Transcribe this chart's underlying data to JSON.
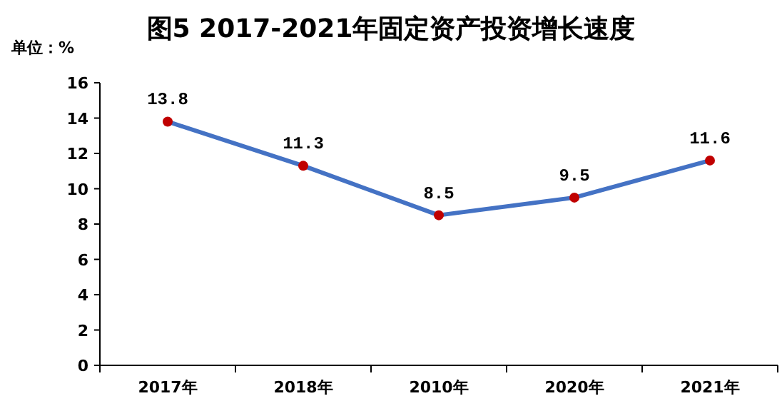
{
  "chart_data": {
    "type": "line",
    "title": "图5  2017-2021年固定资产投资增长速度",
    "ylabel": "单位：%",
    "categories": [
      "2017年",
      "2018年",
      "2010年",
      "2020年",
      "2021年"
    ],
    "series": [
      {
        "color": "#4472c4",
        "colors": [
          "#c00000",
          "#c00000",
          "#c00000",
          "#c00000",
          "#c00000"
        ],
        "values": [
          13.8,
          11.3,
          8.5,
          9.5,
          11.6
        ]
      }
    ],
    "ylim": [
      0,
      16
    ],
    "yticks": [
      0,
      2,
      4,
      6,
      8,
      10,
      12,
      14,
      16
    ],
    "marker": "circle",
    "data_labels": true,
    "grid": false
  }
}
